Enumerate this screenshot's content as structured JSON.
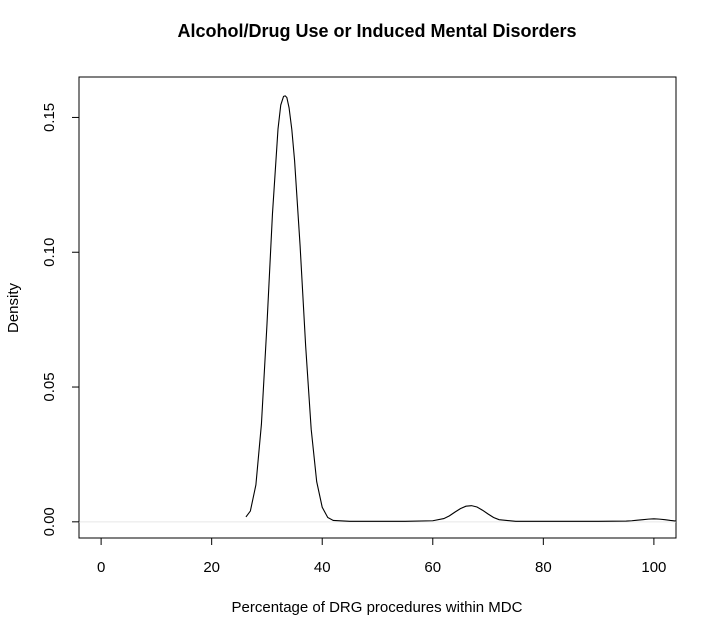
{
  "chart_data": {
    "type": "line",
    "title": "Alcohol/Drug Use or Induced Mental Disorders",
    "xlabel": "Percentage of DRG procedures within MDC",
    "ylabel": "Density",
    "xlim": [
      -4,
      104
    ],
    "ylim": [
      -0.006,
      0.165
    ],
    "xticks": [
      0,
      20,
      40,
      60,
      80,
      100
    ],
    "xtick_labels": [
      "0",
      "20",
      "40",
      "60",
      "80",
      "100"
    ],
    "yticks": [
      0.0,
      0.05,
      0.1,
      0.15
    ],
    "ytick_labels": [
      "0.00",
      "0.05",
      "0.10",
      "0.15"
    ],
    "grid": false,
    "legend": "none",
    "series": [
      {
        "x": [
          26.2,
          27,
          28,
          29,
          30,
          31,
          32,
          32.5,
          33,
          33.3,
          33.6,
          34,
          34.5,
          35,
          36,
          37,
          38,
          39,
          40,
          41,
          42,
          45,
          50,
          55,
          60,
          62,
          63,
          64,
          65,
          66,
          67,
          68,
          69,
          70,
          71,
          72,
          75,
          80,
          85,
          90,
          95,
          96,
          97,
          98,
          99,
          100,
          101,
          102,
          103,
          104
        ],
        "y": [
          0.0018,
          0.004,
          0.0137,
          0.0362,
          0.073,
          0.1143,
          0.1457,
          0.1546,
          0.1578,
          0.158,
          0.1574,
          0.1536,
          0.1455,
          0.134,
          0.1023,
          0.0653,
          0.0344,
          0.0149,
          0.0054,
          0.0016,
          0.0005,
          0.0002,
          0.0002,
          0.0002,
          0.0004,
          0.0012,
          0.0022,
          0.0036,
          0.0049,
          0.0058,
          0.006,
          0.0055,
          0.0043,
          0.0029,
          0.0016,
          0.0008,
          0.0002,
          0.0002,
          0.0002,
          0.0002,
          0.0003,
          0.0004,
          0.0006,
          0.0008,
          0.001,
          0.0011,
          0.001,
          0.0008,
          0.0005,
          0.0003
        ]
      }
    ]
  }
}
